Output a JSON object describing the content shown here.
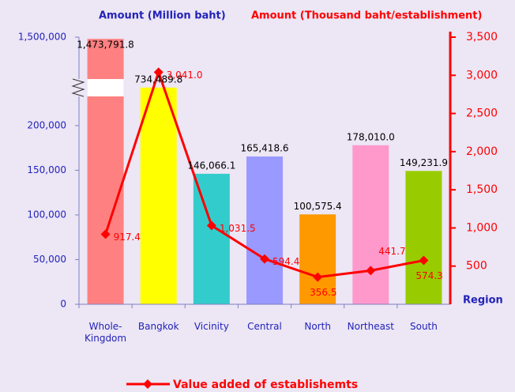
{
  "chart_data": {
    "type": "bar_line",
    "y_title": "Amount (Million baht)",
    "y2_title": "Amount (Thousand baht/establishment)",
    "x_title": "Region",
    "categories": [
      "Whole-Kingdom",
      "Bangkok",
      "Vicinity",
      "Central",
      "North",
      "Northeast",
      "South"
    ],
    "series": [
      {
        "type": "bar",
        "values": [
          1473791.8,
          734489.8,
          146066.1,
          165418.6,
          100575.4,
          178010.0,
          149231.9
        ],
        "value_labels": [
          "1,473,791.8",
          "734,489.8",
          "146,066.1",
          "165,418.6",
          "100,575.4",
          "178,010.0",
          "149,231.9"
        ],
        "colors": [
          "#ff8080",
          "#ffff00",
          "#33cccc",
          "#9999ff",
          "#ff9900",
          "#ff99cc",
          "#99cc00"
        ]
      },
      {
        "type": "line",
        "name": "Value added of establishemts",
        "axis": "y2",
        "color": "#ff0000",
        "values": [
          917.4,
          3041.0,
          1031.5,
          594.4,
          356.5,
          441.7,
          574.3
        ],
        "value_labels": [
          "917.4",
          "3,041.0",
          "1,031.5",
          "594.4",
          "356.5",
          "441.7",
          "574.3"
        ]
      }
    ],
    "ylim": [
      0,
      1500000
    ],
    "ybreak": [
      230000,
      600000
    ],
    "yticks": [
      0,
      {
        "value": 50000,
        "label": "50,000"
      },
      {
        "value": 100000,
        "label": "100,000"
      },
      {
        "value": 150000,
        "label": "150,000"
      },
      {
        "value": 200000,
        "label": "200,000"
      },
      {
        "value": 1500000,
        "label": "1,500,000"
      }
    ],
    "y2lim": [
      0,
      3500
    ],
    "y2ticks": [
      500,
      {
        "value": 1000,
        "label": "1,000"
      },
      {
        "value": 1500,
        "label": "1,500"
      },
      {
        "value": 2000,
        "label": "2,000"
      },
      {
        "value": 2500,
        "label": "2,500"
      },
      {
        "value": 3000,
        "label": "3,000"
      },
      {
        "value": 3500,
        "label": "3,500"
      }
    ],
    "legend": "bottom"
  }
}
